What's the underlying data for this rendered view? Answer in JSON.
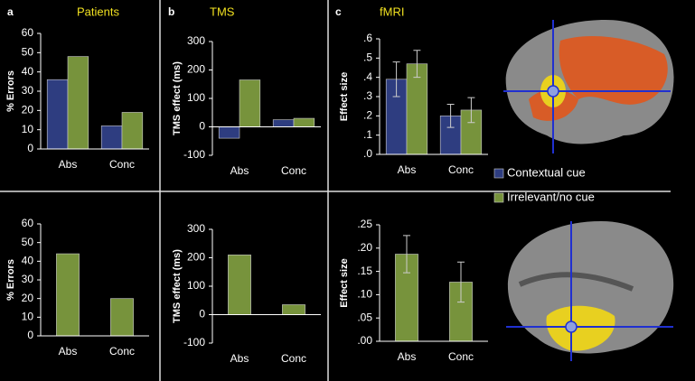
{
  "chart_data": [
    {
      "type": "bar",
      "panel": "a",
      "title": "Patients",
      "ylabel": "% Errors",
      "categories": [
        "Abs",
        "Conc"
      ],
      "series": [
        {
          "color": "#2e3d80",
          "values": [
            36,
            12
          ]
        },
        {
          "color": "#77933c",
          "values": [
            48,
            19
          ]
        }
      ],
      "ylim": [
        0,
        60
      ],
      "yticks": [
        0,
        10,
        20,
        30,
        40,
        50,
        60
      ]
    },
    {
      "type": "bar",
      "ylabel": "% Errors",
      "categories": [
        "Abs",
        "Conc"
      ],
      "series": [
        {
          "color": "#77933c",
          "values": [
            44,
            20
          ]
        }
      ],
      "ylim": [
        0,
        60
      ],
      "yticks": [
        0,
        10,
        20,
        30,
        40,
        50,
        60
      ]
    },
    {
      "type": "bar",
      "panel": "b",
      "title": "TMS",
      "ylabel": "TMS effect (ms)",
      "categories": [
        "Abs",
        "Conc"
      ],
      "series": [
        {
          "color": "#2e3d80",
          "values": [
            -40,
            25
          ]
        },
        {
          "color": "#77933c",
          "values": [
            165,
            30
          ]
        }
      ],
      "ylim": [
        -100,
        300
      ],
      "yticks": [
        -100,
        0,
        100,
        200,
        300
      ]
    },
    {
      "type": "bar",
      "ylabel": "TMS effect (ms)",
      "categories": [
        "Abs",
        "Conc"
      ],
      "series": [
        {
          "color": "#77933c",
          "values": [
            210,
            35
          ]
        }
      ],
      "ylim": [
        -100,
        300
      ],
      "yticks": [
        -100,
        0,
        100,
        200,
        300
      ]
    },
    {
      "type": "bar",
      "panel": "c",
      "title": "fMRI",
      "ylabel": "Effect size",
      "categories": [
        "Abs",
        "Conc"
      ],
      "legend": true,
      "series": [
        {
          "name": "Contextual cue",
          "color": "#2e3d80",
          "values": [
            0.39,
            0.2
          ],
          "errors": [
            0.09,
            0.06
          ]
        },
        {
          "name": "Irrelevant/no cue",
          "color": "#77933c",
          "values": [
            0.47,
            0.23
          ],
          "errors": [
            0.07,
            0.065
          ]
        }
      ],
      "ylim": [
        0,
        0.6
      ],
      "yticks": [
        {
          "value": 0,
          "label": ".0"
        },
        {
          "value": 0.1,
          "label": ".1"
        },
        {
          "value": 0.2,
          "label": ".2"
        },
        {
          "value": 0.3,
          "label": ".3"
        },
        {
          "value": 0.4,
          "label": ".4"
        },
        {
          "value": 0.5,
          "label": ".5"
        },
        {
          "value": 0.6,
          "label": ".6"
        }
      ]
    },
    {
      "type": "bar",
      "ylabel": "Effect size",
      "categories": [
        "Abs",
        "Conc"
      ],
      "series": [
        {
          "color": "#77933c",
          "values": [
            0.187,
            0.127
          ],
          "errors": [
            0.04,
            0.043
          ]
        }
      ],
      "ylim": [
        0,
        0.25
      ],
      "yticks": [
        {
          "value": 0,
          "label": ".00"
        },
        {
          "value": 0.05,
          "label": ".05"
        },
        {
          "value": 0.1,
          "label": ".10"
        },
        {
          "value": 0.15,
          "label": ".15"
        },
        {
          "value": 0.2,
          "label": ".20"
        },
        {
          "value": 0.25,
          "label": ".25"
        }
      ]
    }
  ]
}
